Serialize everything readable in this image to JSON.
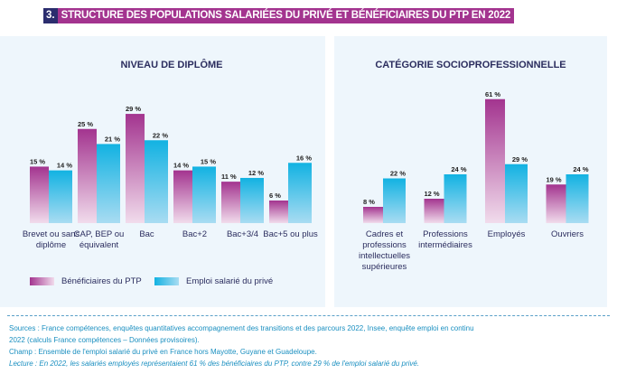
{
  "title": {
    "number": "3.",
    "text": "STRUCTURE DES POPULATIONS SALARIÉES DU PRIVÉ ET BÉNÉFICIAIRES DU PTP EN 2022"
  },
  "colors": {
    "ptp": "#a3348f",
    "prive": "#1ab4e0",
    "title_num_bg": "#2b2d6e",
    "title_bg": "#a3348f",
    "panel_bg": "#eef6fc"
  },
  "chart_data": [
    {
      "type": "bar",
      "title": "NIVEAU DE DIPLÔME",
      "categories": [
        "Brevet ou sans diplôme",
        "CAP, BEP ou équivalent",
        "Bac",
        "Bac+2",
        "Bac+3/4",
        "Bac+5 ou plus"
      ],
      "series": [
        {
          "name": "Bénéficiaires du PTP",
          "values": [
            15,
            25,
            29,
            14,
            11,
            6
          ],
          "labels": [
            "15 %",
            "25 %",
            "29 %",
            "14 %",
            "11 %",
            "6 %"
          ]
        },
        {
          "name": "Emploi salarié du privé",
          "values": [
            14,
            21,
            22,
            15,
            12,
            16
          ],
          "labels": [
            "14 %",
            "21 %",
            "22 %",
            "15 %",
            "12 %",
            "16 %"
          ]
        }
      ],
      "unit": "%",
      "grid": false,
      "legend": "bottom-left"
    },
    {
      "type": "bar",
      "title": "CATÉGORIE SOCIOPROFESSIONNELLE",
      "categories": [
        "Cadres et professions intellectuelles supérieures",
        "Professions intermédiaires",
        "Employés",
        "Ouvriers"
      ],
      "series": [
        {
          "name": "Bénéficiaires du PTP",
          "values": [
            8,
            12,
            61,
            19
          ],
          "labels": [
            "8 %",
            "12 %",
            "61 %",
            "19 %"
          ]
        },
        {
          "name": "Emploi salarié du privé",
          "values": [
            22,
            24,
            29,
            24
          ],
          "labels": [
            "22 %",
            "24 %",
            "29 %",
            "24 %"
          ]
        }
      ],
      "unit": "%",
      "grid": false
    }
  ],
  "legend": [
    "Bénéficiaires du PTP",
    "Emploi salarié du privé"
  ],
  "notes": {
    "sources": "Sources : France compétences, enquêtes quantitatives accompagnement des transitions et des parcours 2022, Insee, enquête emploi en continu 2022 (calculs France compétences – Données provisoires).",
    "champ": "Champ : Ensemble de l'emploi salarié du privé en France hors Mayotte, Guyane et Guadeloupe.",
    "lecture": "Lecture : En 2022, les salariés employés représentaient 61 % des bénéficiaires du PTP, contre 29 % de l'emploi salarié du privé."
  }
}
